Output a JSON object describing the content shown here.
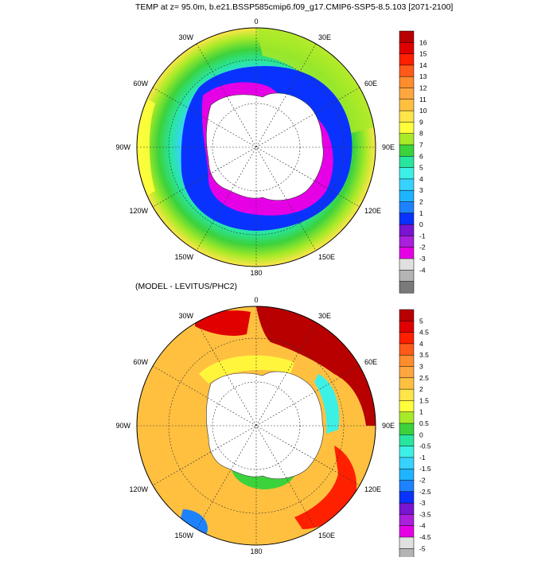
{
  "top_panel": {
    "title": "TEMP at z=  95.0m, b.e21.BSSP585cmip6.f09_g17.CMIP6-SSP5-8.5.103 [2071-2100]",
    "longitude_labels": {
      "n": "0",
      "nne": "30E",
      "ene": "60E",
      "e": "90E",
      "ese": "120E",
      "sse": "150E",
      "s": "180",
      "ssw": "150W",
      "wsw": "120W",
      "w": "90W",
      "wnw": "60W",
      "nnw": "30W"
    },
    "colorbar": {
      "labels": [
        "16",
        "15",
        "14",
        "13",
        "12",
        "11",
        "10",
        "9",
        "8",
        "7",
        "6",
        "5",
        "4",
        "3",
        "2",
        "1",
        "0",
        "-1",
        "-2",
        "-3",
        "-4"
      ],
      "colors": [
        "#b80000",
        "#e00000",
        "#ff2000",
        "#ff5a1a",
        "#ff8c2d",
        "#ffa640",
        "#ffc040",
        "#ffe54a",
        "#ffff3c",
        "#a8ea28",
        "#3cd23c",
        "#28e6a0",
        "#3cf0e6",
        "#38d2ff",
        "#1eb4ff",
        "#1e82ff",
        "#0a32ff",
        "#7814d2",
        "#aa20dc",
        "#e600e6",
        "#e0e0e0",
        "#b4b4b4",
        "#7a7a7a"
      ]
    }
  },
  "bottom_panel": {
    "title": "(MODEL - LEVITUS/PHC2)",
    "longitude_labels": {
      "n": "0",
      "nne": "30E",
      "ene": "60E",
      "e": "90E",
      "ese": "120E",
      "sse": "150E",
      "s": "180",
      "ssw": "150W",
      "wsw": "120W",
      "w": "90W",
      "wnw": "60W",
      "nnw": "30W"
    },
    "colorbar": {
      "labels": [
        "5",
        "4.5",
        "4",
        "3.5",
        "3",
        "2.5",
        "2",
        "1.5",
        "1",
        "0.5",
        "0",
        "-0.5",
        "-1",
        "-1.5",
        "-2",
        "-2.5",
        "-3",
        "-3.5",
        "-4",
        "-4.5",
        "-5"
      ],
      "colors": [
        "#b80000",
        "#e00000",
        "#ff2000",
        "#ff5a1a",
        "#ff8c2d",
        "#ffa640",
        "#ffc040",
        "#ffe54a",
        "#ffff3c",
        "#a8ea28",
        "#3cd23c",
        "#28e6a0",
        "#3cf0e6",
        "#38d2ff",
        "#1eb4ff",
        "#1e82ff",
        "#0a32ff",
        "#7814d2",
        "#aa20dc",
        "#e600e6",
        "#e0e0e0",
        "#b4b4b4",
        "#7a7a7a"
      ]
    }
  }
}
